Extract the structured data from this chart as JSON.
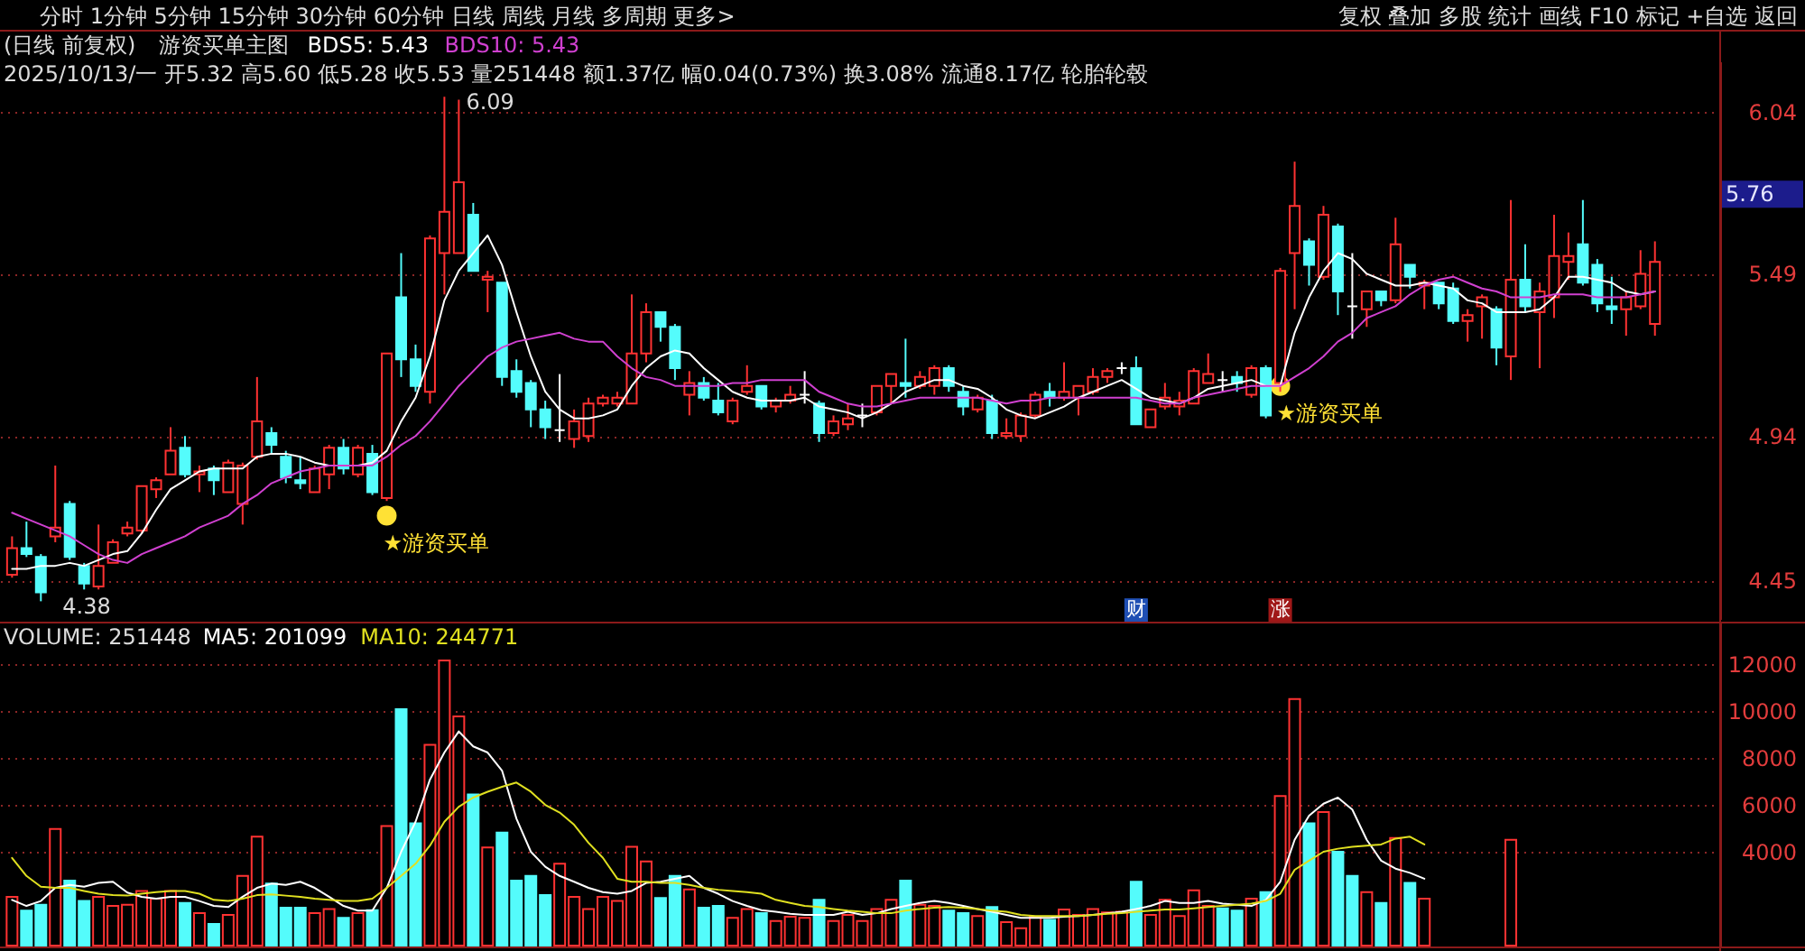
{
  "chart_data": [
    {
      "type": "candlestick",
      "title": "(日线 前复权)",
      "subtitle": "2025/10/13/一 开5.32 高5.60 低5.28 收5.53 量251448 额1.37亿 幅0.04(0.73%) 换3.08% 流通8.17亿 轮胎轮毂",
      "legend_title": "游资买单主图",
      "legend": "top left",
      "grid": "y",
      "categories": [
        null,
        null,
        null,
        null,
        null,
        null,
        null,
        null,
        null,
        null,
        null,
        null,
        null,
        null,
        null,
        null,
        null,
        null,
        null,
        null,
        null,
        null,
        null,
        null,
        null,
        null,
        null,
        null,
        null,
        null,
        null,
        null,
        null,
        null,
        null,
        null,
        null,
        null,
        null,
        null,
        null,
        null,
        null,
        null,
        null,
        null,
        null,
        null,
        null,
        null,
        null,
        null,
        null,
        null,
        null,
        null,
        null,
        null,
        null,
        null,
        null,
        null,
        null,
        null,
        null,
        null,
        null,
        null,
        null,
        null,
        null,
        null,
        null,
        null,
        null,
        null,
        null,
        null,
        null,
        null,
        null,
        null,
        null,
        null,
        null,
        null,
        null,
        null,
        null,
        null,
        null,
        null,
        null,
        null,
        null,
        null,
        null,
        null,
        null,
        null,
        null,
        null,
        null,
        null,
        null,
        null,
        null,
        null,
        null,
        null,
        null,
        null,
        null,
        null,
        null
      ],
      "ohlc": [
        [
          4.47,
          4.6,
          4.46,
          4.56
        ],
        [
          4.56,
          4.65,
          4.53,
          4.54
        ],
        [
          4.53,
          4.54,
          4.38,
          4.41
        ],
        [
          4.6,
          4.84,
          4.58,
          4.63
        ],
        [
          4.71,
          4.72,
          4.52,
          4.53
        ],
        [
          4.5,
          4.51,
          4.42,
          4.44
        ],
        [
          4.43,
          4.64,
          4.42,
          4.5
        ],
        [
          4.51,
          4.59,
          4.51,
          4.58
        ],
        [
          4.61,
          4.65,
          4.6,
          4.63
        ],
        [
          4.62,
          4.77,
          4.61,
          4.77
        ],
        [
          4.76,
          4.8,
          4.73,
          4.79
        ],
        [
          4.81,
          4.97,
          4.81,
          4.89
        ],
        [
          4.9,
          4.94,
          4.8,
          4.81
        ],
        [
          4.81,
          4.84,
          4.75,
          4.82
        ],
        [
          4.83,
          4.84,
          4.74,
          4.79
        ],
        [
          4.75,
          4.86,
          4.75,
          4.85
        ],
        [
          4.71,
          4.85,
          4.64,
          4.84
        ],
        [
          4.87,
          5.14,
          4.86,
          4.99
        ],
        [
          4.95,
          4.97,
          4.88,
          4.91
        ],
        [
          4.87,
          4.89,
          4.78,
          4.8
        ],
        [
          4.79,
          4.87,
          4.76,
          4.78
        ],
        [
          4.75,
          4.84,
          4.75,
          4.83
        ],
        [
          4.81,
          4.91,
          4.76,
          4.9
        ],
        [
          4.9,
          4.93,
          4.81,
          4.83
        ],
        [
          4.81,
          4.91,
          4.8,
          4.9
        ],
        [
          4.88,
          4.91,
          4.74,
          4.75
        ],
        [
          4.73,
          5.22,
          4.72,
          5.22
        ],
        [
          5.41,
          5.56,
          5.14,
          5.2
        ],
        [
          5.2,
          5.25,
          5.09,
          5.11
        ],
        [
          5.09,
          5.62,
          5.05,
          5.61
        ],
        [
          5.56,
          6.09,
          5.42,
          5.7
        ],
        [
          5.56,
          6.08,
          5.56,
          5.8
        ],
        [
          5.69,
          5.73,
          5.5,
          5.5
        ],
        [
          5.47,
          5.5,
          5.36,
          5.48
        ],
        [
          5.46,
          5.46,
          5.11,
          5.14
        ],
        [
          5.16,
          5.2,
          5.07,
          5.09
        ],
        [
          5.12,
          5.13,
          4.97,
          5.03
        ],
        [
          5.03,
          5.06,
          4.93,
          4.97
        ],
        [
          4.96,
          5.15,
          4.92,
          4.96
        ],
        [
          4.93,
          5.03,
          4.9,
          4.99
        ],
        [
          4.94,
          5.07,
          4.92,
          5.05
        ],
        [
          5.05,
          5.08,
          5.04,
          5.07
        ],
        [
          5.05,
          5.09,
          5.04,
          5.07
        ],
        [
          5.05,
          5.42,
          5.05,
          5.22
        ],
        [
          5.22,
          5.39,
          5.19,
          5.36
        ],
        [
          5.36,
          5.36,
          5.26,
          5.31
        ],
        [
          5.31,
          5.32,
          5.13,
          5.17
        ],
        [
          5.08,
          5.16,
          5.01,
          5.12
        ],
        [
          5.12,
          5.14,
          5.06,
          5.07
        ],
        [
          5.06,
          5.12,
          5.01,
          5.02
        ],
        [
          4.99,
          5.07,
          4.98,
          5.06
        ],
        [
          5.09,
          5.18,
          5.08,
          5.11
        ],
        [
          5.11,
          5.11,
          5.03,
          5.04
        ],
        [
          5.04,
          5.07,
          5.02,
          5.06
        ],
        [
          5.06,
          5.11,
          5.05,
          5.08
        ],
        [
          5.08,
          5.16,
          5.05,
          5.08
        ],
        [
          5.05,
          5.06,
          4.92,
          4.95
        ],
        [
          4.95,
          5.01,
          4.94,
          4.99
        ],
        [
          4.98,
          5.05,
          4.96,
          5.0
        ],
        [
          5.01,
          5.05,
          4.97,
          5.01
        ],
        [
          5.02,
          5.11,
          5.01,
          5.11
        ],
        [
          5.11,
          5.15,
          5.05,
          5.15
        ],
        [
          5.12,
          5.27,
          5.07,
          5.11
        ],
        [
          5.11,
          5.16,
          5.1,
          5.14
        ],
        [
          5.11,
          5.18,
          5.08,
          5.17
        ],
        [
          5.17,
          5.18,
          5.09,
          5.11
        ],
        [
          5.09,
          5.11,
          5.01,
          5.04
        ],
        [
          5.03,
          5.08,
          5.02,
          5.07
        ],
        [
          5.06,
          5.08,
          4.93,
          4.95
        ],
        [
          4.94,
          5.0,
          4.93,
          4.95
        ],
        [
          4.94,
          5.02,
          4.92,
          5.01
        ],
        [
          5.01,
          5.09,
          5.0,
          5.08
        ],
        [
          5.09,
          5.12,
          5.04,
          5.07
        ],
        [
          5.07,
          5.19,
          5.06,
          5.09
        ],
        [
          5.07,
          5.11,
          5.01,
          5.11
        ],
        [
          5.09,
          5.17,
          5.08,
          5.14
        ],
        [
          5.14,
          5.17,
          5.12,
          5.16
        ],
        [
          5.17,
          5.19,
          5.15,
          5.17
        ],
        [
          5.17,
          5.21,
          4.98,
          4.98
        ],
        [
          4.97,
          5.03,
          4.97,
          5.03
        ],
        [
          5.04,
          5.12,
          5.03,
          5.07
        ],
        [
          5.04,
          5.09,
          5.01,
          5.06
        ],
        [
          5.05,
          5.17,
          5.05,
          5.16
        ],
        [
          5.12,
          5.22,
          5.12,
          5.15
        ],
        [
          5.13,
          5.16,
          5.09,
          5.13
        ],
        [
          5.14,
          5.16,
          5.09,
          5.12
        ],
        [
          5.08,
          5.18,
          5.07,
          5.17
        ],
        [
          5.17,
          5.18,
          5.0,
          5.01
        ],
        [
          5.12,
          5.51,
          5.09,
          5.5
        ],
        [
          5.56,
          5.87,
          5.37,
          5.72
        ],
        [
          5.6,
          5.61,
          5.45,
          5.52
        ],
        [
          5.48,
          5.72,
          5.47,
          5.69
        ],
        [
          5.65,
          5.66,
          5.35,
          5.43
        ],
        [
          5.38,
          5.56,
          5.27,
          5.38
        ],
        [
          5.37,
          5.43,
          5.31,
          5.43
        ],
        [
          5.43,
          5.43,
          5.38,
          5.4
        ],
        [
          5.4,
          5.68,
          5.39,
          5.59
        ],
        [
          5.52,
          5.52,
          5.44,
          5.48
        ],
        [
          5.45,
          5.47,
          5.37,
          5.46
        ],
        [
          5.46,
          5.46,
          5.37,
          5.39
        ],
        [
          5.44,
          5.46,
          5.32,
          5.33
        ],
        [
          5.33,
          5.37,
          5.26,
          5.35
        ],
        [
          5.38,
          5.42,
          5.27,
          5.41
        ],
        [
          5.37,
          5.38,
          5.18,
          5.24
        ],
        [
          5.21,
          5.74,
          5.13,
          5.47
        ],
        [
          5.47,
          5.59,
          5.36,
          5.38
        ],
        [
          5.36,
          5.46,
          5.17,
          5.43
        ],
        [
          5.41,
          5.69,
          5.34,
          5.55
        ],
        [
          5.53,
          5.63,
          5.47,
          5.55
        ],
        [
          5.59,
          5.74,
          5.45,
          5.46
        ],
        [
          5.52,
          5.54,
          5.36,
          5.39
        ],
        [
          5.38,
          5.48,
          5.32,
          5.37
        ],
        [
          5.37,
          5.43,
          5.28,
          5.41
        ],
        [
          5.38,
          5.57,
          5.37,
          5.49
        ],
        [
          5.32,
          5.6,
          5.28,
          5.53
        ]
      ],
      "colors": [
        "#ff3232",
        "#54fcfc",
        "#54fcfc",
        "#ff3232",
        "#54fcfc",
        "#54fcfc",
        "#ff3232",
        "#ff3232",
        "#ff3232",
        "#ff3232",
        "#ff3232",
        "#ff3232",
        "#54fcfc",
        "#ff3232",
        "#54fcfc",
        "#ff3232",
        "#ff3232",
        "#ff3232",
        "#54fcfc",
        "#54fcfc",
        "#54fcfc",
        "#ff3232",
        "#ff3232",
        "#54fcfc",
        "#ff3232",
        "#54fcfc",
        "#ff3232",
        "#54fcfc",
        "#54fcfc",
        "#ff3232",
        "#ff3232",
        "#ff3232",
        "#54fcfc",
        "#ff3232",
        "#54fcfc",
        "#54fcfc",
        "#54fcfc",
        "#54fcfc",
        "#ffffff",
        "#ff3232",
        "#ff3232",
        "#ff3232",
        "#ff3232",
        "#ff3232",
        "#ff3232",
        "#54fcfc",
        "#54fcfc",
        "#ff3232",
        "#54fcfc",
        "#54fcfc",
        "#ff3232",
        "#ff3232",
        "#54fcfc",
        "#ff3232",
        "#ff3232",
        "#ffffff",
        "#54fcfc",
        "#ff3232",
        "#ff3232",
        "#ffffff",
        "#ff3232",
        "#ff3232",
        "#54fcfc",
        "#ff3232",
        "#ff3232",
        "#54fcfc",
        "#54fcfc",
        "#ff3232",
        "#54fcfc",
        "#ff3232",
        "#ff3232",
        "#ff3232",
        "#54fcfc",
        "#ff3232",
        "#ff3232",
        "#ff3232",
        "#ff3232",
        "#ffffff",
        "#54fcfc",
        "#ff3232",
        "#ff3232",
        "#ff3232",
        "#ff3232",
        "#ff3232",
        "#ffffff",
        "#54fcfc",
        "#ff3232",
        "#54fcfc",
        "#ff3232",
        "#ff3232",
        "#54fcfc",
        "#ff3232",
        "#54fcfc",
        "#ffffff",
        "#ff3232",
        "#54fcfc",
        "#ff3232",
        "#54fcfc",
        "#ff3232",
        "#54fcfc",
        "#54fcfc",
        "#ff3232",
        "#ff3232",
        "#54fcfc",
        "#ff3232",
        "#54fcfc",
        "#ff3232",
        "#ff3232",
        "#ff3232",
        "#54fcfc",
        "#54fcfc",
        "#54fcfc",
        "#ff3232",
        "#ff3232",
        "#ff3232"
      ],
      "series": [
        {
          "name": "BDS5: 5.43",
          "type": "line",
          "color": "#ffffff",
          "values": [
            4.49,
            4.49,
            4.5,
            4.5,
            4.51,
            4.5,
            4.52,
            4.54,
            4.55,
            4.61,
            4.69,
            4.76,
            4.79,
            4.82,
            4.83,
            4.83,
            4.83,
            4.87,
            4.88,
            4.88,
            4.87,
            4.85,
            4.84,
            4.84,
            4.84,
            4.85,
            4.89,
            4.99,
            5.07,
            5.21,
            5.4,
            5.5,
            5.56,
            5.62,
            5.52,
            5.36,
            5.21,
            5.09,
            5.03,
            5.0,
            5.0,
            5.01,
            5.03,
            5.11,
            5.17,
            5.21,
            5.23,
            5.22,
            5.17,
            5.13,
            5.09,
            5.07,
            5.06,
            5.06,
            5.06,
            5.07,
            5.04,
            5.03,
            5.02,
            5.0,
            5.02,
            5.05,
            5.09,
            5.11,
            5.13,
            5.13,
            5.11,
            5.1,
            5.07,
            5.03,
            5.01,
            5.0,
            5.02,
            5.04,
            5.07,
            5.09,
            5.11,
            5.13,
            5.1,
            5.07,
            5.06,
            5.05,
            5.07,
            5.1,
            5.11,
            5.12,
            5.13,
            5.11,
            5.11,
            5.29,
            5.41,
            5.5,
            5.56,
            5.54,
            5.49,
            5.47,
            5.45,
            5.45,
            5.46,
            5.45,
            5.44,
            5.4,
            5.39,
            5.36,
            5.36,
            5.36,
            5.37,
            5.41,
            5.48,
            5.48,
            5.47,
            5.46,
            5.43,
            5.42,
            5.43
          ]
        },
        {
          "name": "BDS10: 5.43",
          "type": "line",
          "color": "#d040d0",
          "values": [
            4.68,
            4.66,
            4.64,
            4.62,
            4.6,
            4.57,
            4.54,
            4.52,
            4.51,
            4.54,
            4.56,
            4.58,
            4.6,
            4.63,
            4.65,
            4.67,
            4.71,
            4.74,
            4.78,
            4.8,
            4.82,
            4.83,
            4.84,
            4.84,
            4.84,
            4.84,
            4.87,
            4.91,
            4.94,
            4.99,
            5.05,
            5.11,
            5.16,
            5.21,
            5.24,
            5.26,
            5.27,
            5.28,
            5.29,
            5.27,
            5.26,
            5.26,
            5.21,
            5.17,
            5.14,
            5.13,
            5.11,
            5.11,
            5.11,
            5.11,
            5.12,
            5.12,
            5.13,
            5.13,
            5.13,
            5.13,
            5.09,
            5.07,
            5.05,
            5.04,
            5.04,
            5.05,
            5.06,
            5.07,
            5.07,
            5.07,
            5.07,
            5.07,
            5.06,
            5.05,
            5.06,
            5.06,
            5.07,
            5.07,
            5.07,
            5.07,
            5.07,
            5.07,
            5.07,
            5.06,
            5.05,
            5.05,
            5.07,
            5.08,
            5.09,
            5.1,
            5.11,
            5.11,
            5.11,
            5.14,
            5.17,
            5.21,
            5.26,
            5.29,
            5.34,
            5.36,
            5.38,
            5.42,
            5.45,
            5.47,
            5.48,
            5.46,
            5.44,
            5.43,
            5.41,
            5.41,
            5.41,
            5.42,
            5.42,
            5.42,
            5.41,
            5.41,
            5.41,
            5.42,
            5.43
          ]
        },
        {
          "name": "★游资买单",
          "type": "scatter",
          "marker": "circle",
          "color": "#ffe135",
          "values": [
            null,
            null,
            null,
            null,
            null,
            null,
            null,
            null,
            null,
            null,
            null,
            null,
            null,
            null,
            null,
            null,
            null,
            null,
            null,
            null,
            null,
            null,
            null,
            null,
            null,
            null,
            4.67,
            null,
            null,
            null,
            null,
            null,
            null,
            null,
            null,
            null,
            null,
            null,
            null,
            null,
            null,
            null,
            null,
            null,
            null,
            null,
            null,
            null,
            null,
            null,
            null,
            null,
            null,
            null,
            null,
            null,
            null,
            null,
            null,
            null,
            null,
            null,
            null,
            null,
            null,
            null,
            null,
            null,
            null,
            null,
            null,
            null,
            null,
            null,
            null,
            null,
            null,
            null,
            null,
            null,
            null,
            null,
            null,
            null,
            null,
            null,
            null,
            null,
            5.11,
            null,
            null,
            null,
            null,
            null,
            null,
            null,
            null,
            null,
            null,
            null,
            null,
            null,
            null,
            null,
            null,
            null,
            null,
            null,
            null,
            null,
            null,
            null,
            null,
            null,
            null
          ]
        },
        {
          "name": "财",
          "type": "scatter",
          "marker": "square",
          "color": "#1f4fb4",
          "values": [
            null,
            null,
            null,
            null,
            null,
            null,
            null,
            null,
            null,
            null,
            null,
            null,
            null,
            null,
            null,
            null,
            null,
            null,
            null,
            null,
            null,
            null,
            null,
            null,
            null,
            null,
            null,
            null,
            null,
            null,
            null,
            null,
            null,
            null,
            null,
            null,
            null,
            null,
            null,
            null,
            null,
            null,
            null,
            null,
            null,
            null,
            null,
            null,
            null,
            null,
            null,
            null,
            null,
            null,
            null,
            null,
            null,
            null,
            null,
            null,
            null,
            null,
            null,
            null,
            null,
            null,
            null,
            null,
            null,
            null,
            null,
            null,
            null,
            null,
            null,
            null,
            null,
            null,
            4.35,
            null,
            null,
            null,
            null,
            null,
            null,
            null,
            null,
            null,
            null,
            null,
            null,
            null,
            null,
            null,
            null,
            null,
            null,
            null,
            null,
            null,
            null,
            null,
            null,
            null,
            null,
            null,
            null,
            null,
            null,
            null,
            null,
            null,
            null,
            null,
            null
          ]
        },
        {
          "name": "涨",
          "type": "scatter",
          "marker": "square",
          "color": "#a01818",
          "values": [
            null,
            null,
            null,
            null,
            null,
            null,
            null,
            null,
            null,
            null,
            null,
            null,
            null,
            null,
            null,
            null,
            null,
            null,
            null,
            null,
            null,
            null,
            null,
            null,
            null,
            null,
            null,
            null,
            null,
            null,
            null,
            null,
            null,
            null,
            null,
            null,
            null,
            null,
            null,
            null,
            null,
            null,
            null,
            null,
            null,
            null,
            null,
            null,
            null,
            null,
            null,
            null,
            null,
            null,
            null,
            null,
            null,
            null,
            null,
            null,
            null,
            null,
            null,
            null,
            null,
            null,
            null,
            null,
            null,
            null,
            null,
            null,
            null,
            null,
            null,
            null,
            null,
            null,
            null,
            null,
            null,
            null,
            null,
            null,
            null,
            null,
            null,
            null,
            4.35,
            null,
            null,
            null,
            null,
            null,
            null,
            null,
            null,
            null,
            null,
            null,
            null,
            null,
            null,
            null,
            null,
            null,
            null,
            null,
            null,
            null,
            null,
            null,
            null,
            null,
            null
          ]
        }
      ],
      "ylim": [
        4.32,
        6.21
      ],
      "yticks": [
        4.45,
        4.94,
        5.49,
        6.04
      ],
      "annotations": [
        "分时 1分钟 5分钟 15分钟 30分钟 60分钟 日线 周线 月线 多周期 更多>",
        "复权 叠加 多股 统计 画线 F10 标记 +自选 返回",
        "6.09",
        "4.38",
        "5.76"
      ]
    },
    {
      "type": "bar",
      "legend": "top left",
      "legend_title": "VOLUME: 251448",
      "grid": "y",
      "categories": [
        null,
        null,
        null,
        null,
        null,
        null,
        null,
        null,
        null,
        null,
        null,
        null,
        null,
        null,
        null,
        null,
        null,
        null,
        null,
        null,
        null,
        null,
        null,
        null,
        null,
        null,
        null,
        null,
        null,
        null,
        null,
        null,
        null,
        null,
        null,
        null,
        null,
        null,
        null,
        null,
        null,
        null,
        null,
        null,
        null,
        null,
        null,
        null,
        null,
        null,
        null,
        null,
        null,
        null,
        null,
        null,
        null,
        null,
        null,
        null,
        null,
        null,
        null,
        null,
        null,
        null,
        null,
        null,
        null,
        null,
        null,
        null,
        null,
        null,
        null,
        null,
        null,
        null,
        null,
        null,
        null,
        null,
        null,
        null,
        null,
        null,
        null,
        null,
        null,
        null,
        null,
        null,
        null,
        null,
        null,
        null,
        null,
        null,
        null,
        null,
        null,
        null,
        null,
        null,
        null,
        null,
        null,
        null,
        null,
        null,
        null,
        null,
        null,
        null,
        null
      ],
      "series": [
        {
          "type": "bar",
          "colors": [
            "#ff3232",
            "#54fcfc",
            "#54fcfc",
            "#ff3232",
            "#54fcfc",
            "#54fcfc",
            "#ff3232",
            "#ff3232",
            "#ff3232",
            "#ff3232",
            "#ff3232",
            "#ff3232",
            "#54fcfc",
            "#ff3232",
            "#54fcfc",
            "#ff3232",
            "#ff3232",
            "#ff3232",
            "#54fcfc",
            "#54fcfc",
            "#54fcfc",
            "#ff3232",
            "#ff3232",
            "#54fcfc",
            "#ff3232",
            "#54fcfc",
            "#ff3232",
            "#54fcfc",
            "#54fcfc",
            "#ff3232",
            "#ff3232",
            "#ff3232",
            "#54fcfc",
            "#ff3232",
            "#54fcfc",
            "#54fcfc",
            "#54fcfc",
            "#54fcfc",
            "#ff3232",
            "#ff3232",
            "#ff3232",
            "#ff3232",
            "#ff3232",
            "#ff3232",
            "#ff3232",
            "#54fcfc",
            "#54fcfc",
            "#ff3232",
            "#54fcfc",
            "#54fcfc",
            "#ff3232",
            "#ff3232",
            "#54fcfc",
            "#ff3232",
            "#ff3232",
            "#ff3232",
            "#54fcfc",
            "#ff3232",
            "#ff3232",
            "#ff3232",
            "#ff3232",
            "#ff3232",
            "#54fcfc",
            "#ff3232",
            "#ff3232",
            "#54fcfc",
            "#54fcfc",
            "#ff3232",
            "#54fcfc",
            "#ff3232",
            "#ff3232",
            "#ff3232",
            "#54fcfc",
            "#ff3232",
            "#ff3232",
            "#ff3232",
            "#ff3232",
            "#ff3232",
            "#54fcfc",
            "#ff3232",
            "#ff3232",
            "#ff3232",
            "#ff3232",
            "#ff3232",
            "#54fcfc",
            "#54fcfc",
            "#ff3232",
            "#54fcfc",
            "#ff3232",
            "#ff3232",
            "#54fcfc",
            "#ff3232",
            "#54fcfc",
            "#54fcfc",
            "#ff3232",
            "#54fcfc",
            "#ff3232",
            "#54fcfc",
            "#ff3232",
            "#54fcfc",
            "#54fcfc",
            "#ff3232",
            "#ff3232",
            "#54fcfc",
            "#ff3232",
            "#54fcfc",
            "#ff3232",
            "#ff3232",
            "#ff3232",
            "#54fcfc",
            "#54fcfc",
            "#54fcfc",
            "#ff3232",
            "#ff3232",
            "#ff3232"
          ],
          "values": [
            2080,
            1490,
            1740,
            4970,
            2770,
            1900,
            2080,
            1690,
            1740,
            2330,
            2000,
            2330,
            1820,
            1380,
            920,
            1310,
            2970,
            4640,
            2640,
            1620,
            1620,
            1380,
            1560,
            1180,
            1380,
            1510,
            5100,
            10080,
            5210,
            8560,
            12150,
            9770,
            6440,
            4180,
            4820,
            2770,
            2970,
            2150,
            3490,
            2080,
            1560,
            2080,
            1900,
            4210,
            3590,
            2030,
            2970,
            2390,
            1620,
            1690,
            1180,
            1560,
            1380,
            1050,
            1230,
            1180,
            1950,
            1050,
            1310,
            1050,
            1560,
            1950,
            2770,
            1740,
            1690,
            1490,
            1380,
            1260,
            1640,
            1000,
            740,
            1230,
            1100,
            1540,
            1310,
            1560,
            1410,
            1440,
            2720,
            1310,
            1950,
            1260,
            2360,
            1690,
            1590,
            1490,
            2000,
            2280,
            6380,
            10510,
            5210,
            5690,
            4000,
            2970,
            2280,
            1820,
            4590,
            2670,
            2000,
            null,
            null,
            null,
            null,
            null,
            4510,
            null,
            null,
            null,
            null,
            null,
            null,
            null,
            null,
            null,
            null
          ]
        },
        {
          "name": "MA5: 201099",
          "type": "line",
          "color": "#ffffff",
          "values": [
            1950,
            1690,
            1900,
            2460,
            2590,
            2510,
            2670,
            2720,
            2260,
            2080,
            2000,
            2080,
            2080,
            1900,
            1690,
            1640,
            2080,
            2460,
            2640,
            2590,
            2720,
            2460,
            2080,
            1690,
            1490,
            1490,
            2460,
            4000,
            5280,
            7080,
            8230,
            9130,
            8490,
            8230,
            7460,
            5410,
            4000,
            3360,
            2970,
            2720,
            2460,
            2280,
            2210,
            2330,
            2670,
            2720,
            2850,
            2970,
            2460,
            2210,
            1900,
            1690,
            1510,
            1440,
            1360,
            1310,
            1310,
            1310,
            1440,
            1310,
            1380,
            1560,
            1690,
            1820,
            1900,
            1820,
            1690,
            1560,
            1440,
            1310,
            1180,
            1180,
            1180,
            1230,
            1260,
            1310,
            1380,
            1440,
            1560,
            1690,
            1900,
            1820,
            1820,
            1900,
            1790,
            1740,
            1690,
            1950,
            2720,
            4510,
            5540,
            6050,
            6310,
            5800,
            4510,
            3620,
            3280,
            3100,
            2850,
            null,
            null,
            null,
            null,
            null,
            null,
            null,
            null,
            null,
            null,
            null,
            null,
            null,
            null,
            null,
            null
          ]
        },
        {
          "name": "MA10: 244771",
          "type": "line",
          "color": "#e0e020",
          "values": [
            3740,
            2970,
            2510,
            2460,
            2460,
            2330,
            2210,
            2150,
            2130,
            2210,
            2280,
            2330,
            2330,
            2210,
            1950,
            1900,
            2000,
            2150,
            2180,
            2130,
            2080,
            2000,
            1950,
            1900,
            1900,
            2000,
            2460,
            2970,
            3490,
            4260,
            5280,
            5920,
            6310,
            6560,
            6770,
            6950,
            6560,
            6000,
            5670,
            5150,
            4380,
            3740,
            2850,
            2720,
            2720,
            2670,
            2670,
            2590,
            2460,
            2380,
            2330,
            2280,
            2210,
            1950,
            1820,
            1690,
            1640,
            1560,
            1490,
            1440,
            1380,
            1380,
            1490,
            1560,
            1620,
            1640,
            1620,
            1560,
            1490,
            1440,
            1310,
            1260,
            1260,
            1260,
            1260,
            1310,
            1360,
            1380,
            1440,
            1490,
            1540,
            1540,
            1590,
            1640,
            1690,
            1740,
            1790,
            1900,
            2210,
            3230,
            3620,
            4000,
            4130,
            4210,
            4260,
            4310,
            4560,
            4640,
            4310,
            null,
            null,
            null,
            null,
            null,
            null,
            null,
            null,
            null,
            null,
            null,
            null,
            null,
            null,
            null,
            null
          ]
        }
      ],
      "ylim": [
        0,
        13770
      ],
      "yticks": [
        4000,
        6000,
        8000,
        10000,
        12000
      ]
    }
  ]
}
